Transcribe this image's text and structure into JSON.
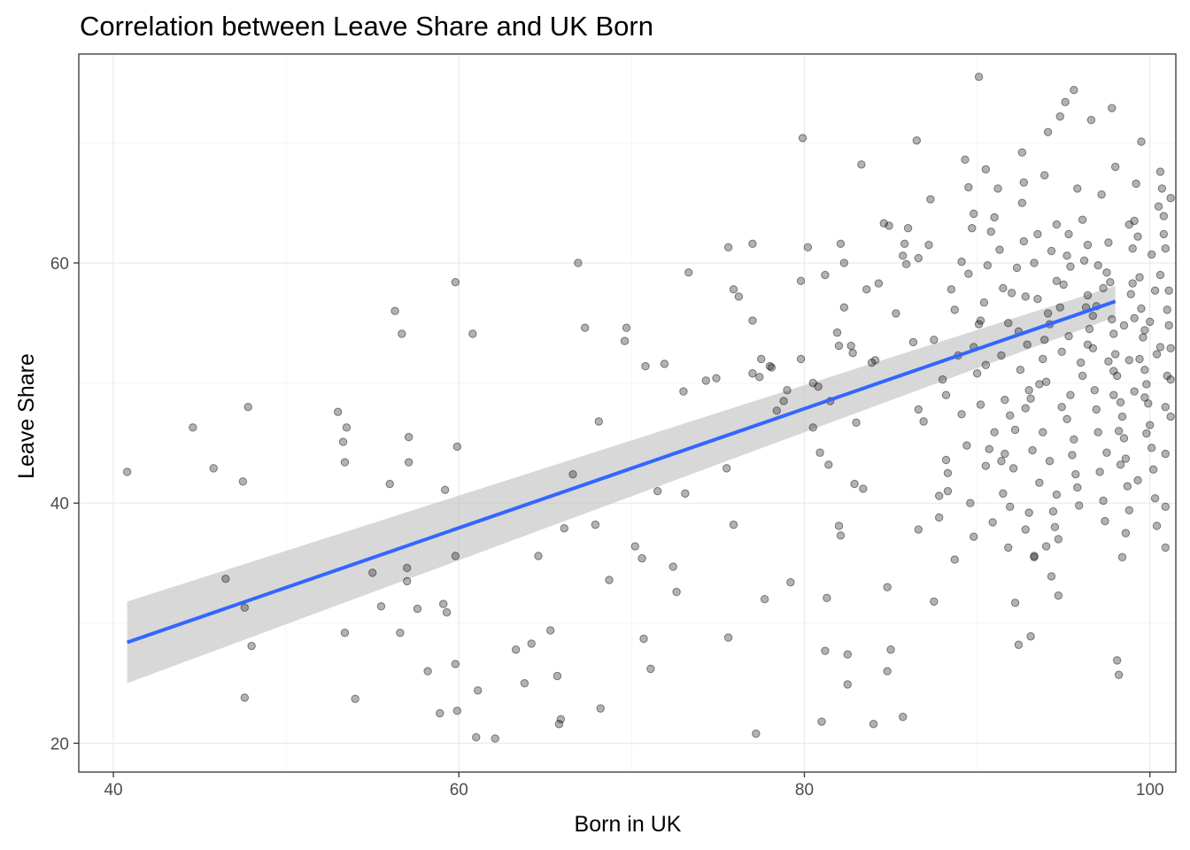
{
  "chart_data": {
    "type": "scatter",
    "title": "Correlation between Leave Share and UK Born",
    "xlabel": "Born in UK",
    "ylabel": "Leave Share",
    "xlim": [
      38,
      101.5
    ],
    "ylim": [
      17.6,
      77.4
    ],
    "x_ticks": [
      40,
      60,
      80,
      100
    ],
    "y_ticks": [
      20,
      40,
      60
    ],
    "grid": true,
    "legend": "none",
    "colors": {
      "points": "#000000",
      "trend_line": "#3366ff",
      "confidence_band": "#bebebe",
      "grid_major": "#ebebeb",
      "grid_minor": "#f5f5f5",
      "panel_border": "#333333"
    },
    "trend": {
      "method": "linear",
      "x": [
        40.8,
        98.0
      ],
      "y": [
        28.4,
        56.8
      ],
      "band_lower": [
        25.0,
        55.5
      ],
      "band_upper": [
        31.8,
        58.1
      ]
    },
    "points": [
      [
        40.8,
        42.6
      ],
      [
        44.6,
        46.3
      ],
      [
        45.8,
        42.9
      ],
      [
        46.5,
        33.7
      ],
      [
        47.5,
        41.8
      ],
      [
        47.8,
        48.0
      ],
      [
        47.6,
        31.3
      ],
      [
        47.6,
        23.8
      ],
      [
        48.0,
        28.1
      ],
      [
        53.0,
        47.6
      ],
      [
        53.3,
        45.1
      ],
      [
        53.5,
        46.3
      ],
      [
        53.4,
        43.4
      ],
      [
        53.4,
        29.2
      ],
      [
        54.0,
        23.7
      ],
      [
        55.0,
        34.2
      ],
      [
        55.5,
        31.4
      ],
      [
        56.0,
        41.6
      ],
      [
        56.3,
        56.0
      ],
      [
        56.7,
        54.1
      ],
      [
        56.6,
        29.2
      ],
      [
        57.0,
        34.6
      ],
      [
        57.0,
        33.5
      ],
      [
        57.1,
        45.5
      ],
      [
        57.1,
        43.4
      ],
      [
        57.6,
        31.2
      ],
      [
        58.2,
        26.0
      ],
      [
        59.2,
        41.1
      ],
      [
        59.1,
        31.6
      ],
      [
        59.3,
        30.9
      ],
      [
        58.9,
        22.5
      ],
      [
        59.8,
        58.4
      ],
      [
        59.9,
        44.7
      ],
      [
        59.8,
        35.6
      ],
      [
        59.8,
        26.6
      ],
      [
        59.9,
        22.7
      ],
      [
        60.8,
        54.1
      ],
      [
        61.1,
        24.4
      ],
      [
        61.0,
        20.5
      ],
      [
        62.1,
        20.4
      ],
      [
        63.3,
        27.8
      ],
      [
        63.8,
        25.0
      ],
      [
        64.2,
        28.3
      ],
      [
        64.6,
        35.6
      ],
      [
        65.3,
        29.4
      ],
      [
        65.7,
        25.6
      ],
      [
        65.8,
        21.6
      ],
      [
        65.9,
        22.0
      ],
      [
        66.1,
        37.9
      ],
      [
        66.6,
        42.4
      ],
      [
        66.9,
        60.0
      ],
      [
        67.3,
        54.6
      ],
      [
        67.9,
        38.2
      ],
      [
        68.1,
        46.8
      ],
      [
        68.2,
        22.9
      ],
      [
        68.7,
        33.6
      ],
      [
        69.6,
        53.5
      ],
      [
        69.7,
        54.6
      ],
      [
        70.2,
        36.4
      ],
      [
        70.6,
        35.4
      ],
      [
        70.7,
        28.7
      ],
      [
        70.8,
        51.4
      ],
      [
        71.1,
        26.2
      ],
      [
        71.5,
        41.0
      ],
      [
        71.9,
        51.6
      ],
      [
        72.4,
        34.7
      ],
      [
        72.6,
        32.6
      ],
      [
        73.0,
        49.3
      ],
      [
        73.1,
        40.8
      ],
      [
        73.3,
        59.2
      ],
      [
        74.3,
        50.2
      ],
      [
        74.9,
        50.4
      ],
      [
        75.5,
        42.9
      ],
      [
        75.6,
        28.8
      ],
      [
        75.6,
        61.3
      ],
      [
        75.9,
        57.8
      ],
      [
        75.9,
        38.2
      ],
      [
        76.2,
        57.2
      ],
      [
        77.0,
        61.6
      ],
      [
        77.0,
        55.2
      ],
      [
        77.0,
        50.8
      ],
      [
        77.2,
        20.8
      ],
      [
        77.4,
        50.5
      ],
      [
        77.5,
        52.0
      ],
      [
        77.7,
        32.0
      ],
      [
        78.0,
        51.4
      ],
      [
        78.1,
        51.3
      ],
      [
        78.4,
        47.7
      ],
      [
        78.8,
        48.5
      ],
      [
        79.0,
        49.4
      ],
      [
        79.2,
        33.4
      ],
      [
        79.8,
        52.0
      ],
      [
        79.8,
        58.5
      ],
      [
        79.9,
        70.4
      ],
      [
        80.2,
        61.3
      ],
      [
        80.5,
        46.3
      ],
      [
        80.5,
        50.0
      ],
      [
        80.8,
        49.7
      ],
      [
        80.9,
        44.2
      ],
      [
        81.0,
        21.8
      ],
      [
        81.2,
        59.0
      ],
      [
        81.2,
        27.7
      ],
      [
        81.3,
        32.1
      ],
      [
        81.4,
        43.2
      ],
      [
        81.5,
        48.5
      ],
      [
        81.9,
        54.2
      ],
      [
        82.0,
        53.1
      ],
      [
        82.0,
        38.1
      ],
      [
        82.1,
        61.6
      ],
      [
        82.1,
        37.3
      ],
      [
        82.3,
        60.0
      ],
      [
        82.3,
        56.3
      ],
      [
        82.5,
        24.9
      ],
      [
        82.5,
        27.4
      ],
      [
        82.7,
        53.1
      ],
      [
        82.8,
        52.5
      ],
      [
        82.9,
        41.6
      ],
      [
        83.0,
        46.7
      ],
      [
        83.3,
        68.2
      ],
      [
        83.4,
        41.2
      ],
      [
        83.6,
        57.8
      ],
      [
        83.9,
        51.7
      ],
      [
        84.0,
        21.6
      ],
      [
        84.1,
        51.9
      ],
      [
        84.3,
        58.3
      ],
      [
        84.6,
        63.3
      ],
      [
        84.9,
        63.1
      ],
      [
        84.8,
        33.0
      ],
      [
        84.8,
        26.0
      ],
      [
        85.0,
        27.8
      ],
      [
        85.3,
        55.8
      ],
      [
        85.7,
        60.6
      ],
      [
        85.8,
        61.6
      ],
      [
        85.9,
        59.9
      ],
      [
        86.0,
        62.9
      ],
      [
        85.7,
        22.2
      ],
      [
        86.3,
        53.4
      ],
      [
        86.5,
        70.2
      ],
      [
        86.6,
        60.4
      ],
      [
        86.6,
        47.8
      ],
      [
        86.6,
        37.8
      ],
      [
        86.9,
        46.8
      ],
      [
        87.2,
        61.5
      ],
      [
        87.3,
        65.3
      ],
      [
        87.5,
        53.6
      ],
      [
        87.5,
        31.8
      ],
      [
        87.8,
        40.6
      ],
      [
        87.8,
        38.8
      ],
      [
        88.0,
        50.3
      ],
      [
        88.2,
        49.0
      ],
      [
        88.2,
        43.6
      ],
      [
        88.3,
        42.5
      ],
      [
        88.3,
        41.0
      ],
      [
        88.5,
        57.8
      ],
      [
        88.7,
        56.1
      ],
      [
        88.7,
        35.3
      ],
      [
        88.9,
        52.3
      ],
      [
        89.1,
        60.1
      ],
      [
        89.3,
        68.6
      ],
      [
        89.5,
        66.3
      ],
      [
        89.5,
        59.1
      ],
      [
        89.7,
        62.9
      ],
      [
        89.8,
        64.1
      ],
      [
        90.1,
        75.5
      ],
      [
        90.2,
        55.2
      ],
      [
        90.5,
        67.8
      ],
      [
        90.5,
        43.1
      ],
      [
        90.7,
        44.5
      ],
      [
        90.9,
        38.4
      ],
      [
        91.3,
        61.1
      ],
      [
        91.5,
        57.9
      ],
      [
        91.6,
        44.1
      ],
      [
        91.8,
        36.3
      ],
      [
        91.9,
        47.3
      ],
      [
        92.2,
        31.7
      ],
      [
        92.4,
        28.2
      ],
      [
        92.6,
        69.2
      ],
      [
        92.7,
        61.8
      ],
      [
        92.8,
        57.2
      ],
      [
        92.9,
        53.2
      ],
      [
        93.0,
        49.4
      ],
      [
        93.1,
        48.7
      ],
      [
        93.1,
        28.9
      ],
      [
        93.3,
        35.5
      ],
      [
        93.5,
        62.4
      ],
      [
        93.6,
        41.7
      ],
      [
        93.8,
        45.9
      ],
      [
        93.9,
        67.3
      ],
      [
        94.1,
        70.9
      ],
      [
        94.2,
        54.9
      ],
      [
        94.3,
        33.9
      ],
      [
        94.6,
        58.5
      ],
      [
        94.6,
        40.7
      ],
      [
        94.7,
        32.3
      ],
      [
        94.8,
        72.2
      ],
      [
        94.9,
        48.0
      ],
      [
        95.1,
        73.4
      ],
      [
        95.3,
        62.4
      ],
      [
        95.4,
        59.7
      ],
      [
        95.6,
        74.4
      ],
      [
        95.8,
        66.2
      ],
      [
        96.0,
        51.7
      ],
      [
        96.3,
        56.3
      ],
      [
        96.4,
        61.5
      ],
      [
        96.6,
        71.9
      ],
      [
        96.9,
        56.4
      ],
      [
        97.2,
        65.7
      ],
      [
        97.5,
        44.2
      ],
      [
        97.8,
        72.9
      ],
      [
        97.9,
        51.0
      ],
      [
        98.0,
        68.0
      ],
      [
        98.1,
        26.9
      ],
      [
        98.2,
        25.7
      ],
      [
        98.3,
        43.2
      ],
      [
        98.4,
        35.5
      ],
      [
        98.6,
        37.5
      ],
      [
        98.8,
        63.2
      ],
      [
        99.0,
        58.3
      ],
      [
        99.1,
        49.3
      ],
      [
        99.3,
        41.9
      ],
      [
        99.5,
        70.1
      ],
      [
        99.7,
        54.4
      ],
      [
        99.8,
        45.8
      ],
      [
        100.1,
        60.7
      ],
      [
        100.4,
        52.4
      ],
      [
        100.6,
        59.0
      ],
      [
        100.8,
        62.4
      ],
      [
        101.0,
        50.6
      ],
      [
        100.9,
        44.1
      ],
      [
        100.9,
        36.3
      ],
      [
        100.9,
        39.7
      ],
      [
        101.1,
        57.7
      ],
      [
        101.2,
        65.4
      ],
      [
        101.2,
        47.2
      ],
      [
        91.5,
        40.8
      ],
      [
        91.9,
        39.7
      ],
      [
        92.1,
        42.9
      ],
      [
        92.2,
        46.1
      ],
      [
        92.4,
        54.3
      ],
      [
        92.6,
        65.0
      ],
      [
        92.7,
        66.7
      ],
      [
        93.0,
        39.2
      ],
      [
        93.3,
        60.0
      ],
      [
        93.5,
        57.0
      ],
      [
        93.8,
        52.0
      ],
      [
        94.0,
        50.1
      ],
      [
        94.2,
        43.5
      ],
      [
        94.4,
        39.3
      ],
      [
        94.5,
        38.0
      ],
      [
        94.8,
        56.3
      ],
      [
        95.0,
        58.2
      ],
      [
        95.2,
        60.6
      ],
      [
        95.3,
        53.9
      ],
      [
        95.4,
        49.0
      ],
      [
        95.6,
        45.3
      ],
      [
        95.7,
        42.4
      ],
      [
        95.9,
        39.8
      ],
      [
        96.1,
        63.6
      ],
      [
        96.2,
        60.2
      ],
      [
        96.4,
        57.3
      ],
      [
        96.5,
        54.5
      ],
      [
        96.7,
        52.9
      ],
      [
        96.8,
        49.4
      ],
      [
        96.9,
        47.8
      ],
      [
        97.0,
        45.9
      ],
      [
        97.1,
        42.6
      ],
      [
        97.3,
        40.2
      ],
      [
        97.4,
        38.5
      ],
      [
        97.5,
        59.2
      ],
      [
        97.6,
        61.7
      ],
      [
        97.7,
        58.4
      ],
      [
        97.8,
        55.3
      ],
      [
        97.9,
        54.1
      ],
      [
        98.0,
        52.4
      ],
      [
        98.1,
        50.6
      ],
      [
        98.3,
        48.4
      ],
      [
        98.4,
        47.2
      ],
      [
        98.5,
        45.4
      ],
      [
        98.6,
        43.7
      ],
      [
        98.7,
        41.4
      ],
      [
        98.8,
        39.4
      ],
      [
        98.9,
        57.4
      ],
      [
        99.0,
        61.2
      ],
      [
        99.1,
        63.5
      ],
      [
        99.2,
        66.6
      ],
      [
        99.3,
        62.2
      ],
      [
        99.4,
        58.8
      ],
      [
        99.5,
        56.2
      ],
      [
        99.6,
        53.8
      ],
      [
        99.7,
        51.1
      ],
      [
        99.8,
        49.9
      ],
      [
        99.9,
        48.3
      ],
      [
        100.0,
        46.5
      ],
      [
        100.1,
        44.6
      ],
      [
        100.2,
        42.8
      ],
      [
        100.3,
        40.4
      ],
      [
        100.4,
        38.1
      ],
      [
        100.5,
        64.7
      ],
      [
        100.6,
        67.6
      ],
      [
        100.7,
        66.2
      ],
      [
        100.8,
        63.9
      ],
      [
        100.9,
        61.2
      ],
      [
        101.0,
        56.1
      ],
      [
        101.1,
        54.8
      ],
      [
        101.2,
        52.9
      ],
      [
        101.2,
        50.3
      ],
      [
        89.1,
        47.4
      ],
      [
        89.4,
        44.8
      ],
      [
        89.6,
        40.0
      ],
      [
        89.8,
        37.2
      ],
      [
        90.0,
        50.8
      ],
      [
        90.2,
        48.2
      ],
      [
        90.4,
        56.7
      ],
      [
        90.6,
        59.8
      ],
      [
        90.8,
        62.6
      ],
      [
        91.0,
        63.8
      ],
      [
        91.2,
        66.2
      ],
      [
        91.4,
        52.3
      ],
      [
        91.6,
        48.6
      ],
      [
        91.8,
        55.0
      ],
      [
        92.0,
        57.5
      ],
      [
        92.3,
        59.6
      ],
      [
        92.5,
        51.1
      ],
      [
        92.8,
        47.9
      ],
      [
        93.2,
        44.4
      ],
      [
        93.6,
        49.9
      ],
      [
        93.9,
        53.6
      ],
      [
        94.1,
        55.8
      ],
      [
        94.3,
        61.0
      ],
      [
        94.6,
        63.2
      ],
      [
        94.9,
        52.6
      ],
      [
        95.2,
        47.0
      ],
      [
        95.5,
        44.0
      ],
      [
        95.8,
        41.3
      ],
      [
        96.1,
        50.6
      ],
      [
        96.4,
        53.2
      ],
      [
        96.7,
        55.6
      ],
      [
        97.0,
        59.8
      ],
      [
        97.3,
        57.9
      ],
      [
        97.6,
        51.8
      ],
      [
        97.9,
        49.0
      ],
      [
        98.2,
        46.0
      ],
      [
        98.5,
        54.8
      ],
      [
        98.8,
        51.9
      ],
      [
        99.1,
        55.4
      ],
      [
        99.4,
        52.0
      ],
      [
        99.7,
        48.8
      ],
      [
        100.0,
        55.1
      ],
      [
        100.3,
        57.7
      ],
      [
        100.6,
        53.0
      ],
      [
        100.9,
        48.0
      ],
      [
        89.8,
        53.0
      ],
      [
        90.1,
        54.9
      ],
      [
        90.5,
        51.5
      ],
      [
        91.0,
        45.9
      ],
      [
        91.4,
        43.5
      ],
      [
        92.8,
        37.8
      ],
      [
        93.3,
        35.6
      ],
      [
        94.0,
        36.4
      ],
      [
        94.7,
        37.0
      ]
    ]
  }
}
